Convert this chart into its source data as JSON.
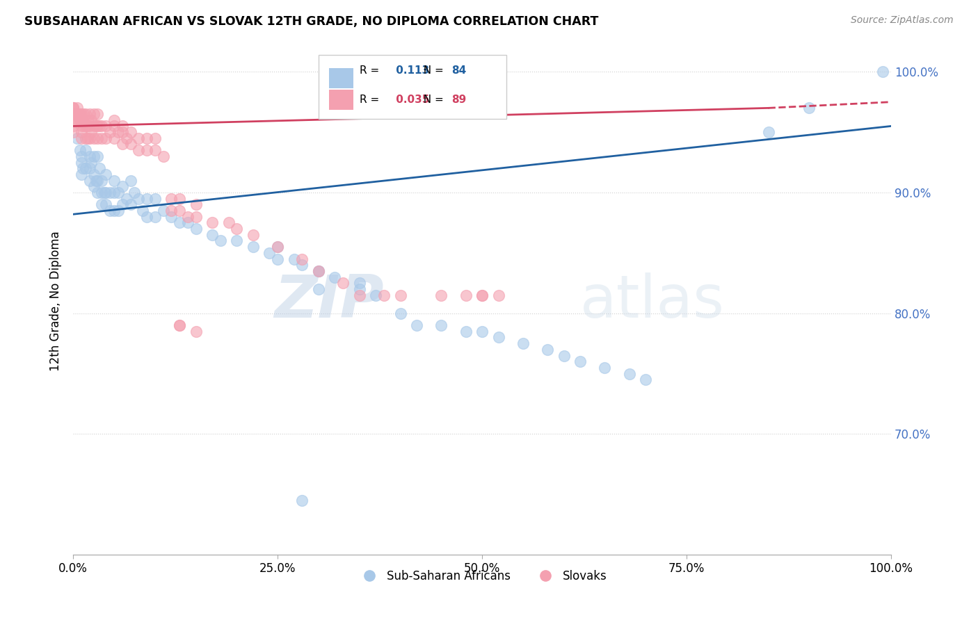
{
  "title": "SUBSAHARAN AFRICAN VS SLOVAK 12TH GRADE, NO DIPLOMA CORRELATION CHART",
  "source": "Source: ZipAtlas.com",
  "ylabel": "12th Grade, No Diploma",
  "legend_label_blue": "Sub-Saharan Africans",
  "legend_label_pink": "Slovaks",
  "R_blue": 0.113,
  "N_blue": 84,
  "R_pink": 0.035,
  "N_pink": 89,
  "color_blue": "#a8c8e8",
  "color_pink": "#f4a0b0",
  "line_color_blue": "#2060a0",
  "line_color_pink": "#d04060",
  "xlim": [
    0,
    1
  ],
  "ylim": [
    0.6,
    1.02
  ],
  "yticks": [
    0.7,
    0.8,
    0.9,
    1.0
  ],
  "xticks": [
    0.0,
    0.25,
    0.5,
    0.75,
    1.0
  ],
  "watermark_zip": "ZIP",
  "watermark_atlas": "atlas",
  "blue_x": [
    0.005,
    0.008,
    0.01,
    0.01,
    0.01,
    0.012,
    0.015,
    0.015,
    0.02,
    0.02,
    0.02,
    0.022,
    0.025,
    0.025,
    0.025,
    0.028,
    0.03,
    0.03,
    0.03,
    0.032,
    0.035,
    0.035,
    0.035,
    0.038,
    0.04,
    0.04,
    0.04,
    0.045,
    0.045,
    0.05,
    0.05,
    0.05,
    0.055,
    0.055,
    0.06,
    0.06,
    0.065,
    0.07,
    0.07,
    0.075,
    0.08,
    0.085,
    0.09,
    0.09,
    0.1,
    0.1,
    0.11,
    0.12,
    0.13,
    0.14,
    0.15,
    0.17,
    0.18,
    0.2,
    0.22,
    0.24,
    0.25,
    0.27,
    0.28,
    0.3,
    0.32,
    0.35,
    0.37,
    0.4,
    0.42,
    0.45,
    0.48,
    0.5,
    0.52,
    0.55,
    0.58,
    0.6,
    0.62,
    0.65,
    0.68,
    0.7,
    0.25,
    0.3,
    0.3,
    0.35,
    0.99,
    0.9,
    0.85,
    0.28
  ],
  "blue_y": [
    0.945,
    0.935,
    0.93,
    0.925,
    0.915,
    0.92,
    0.935,
    0.92,
    0.93,
    0.92,
    0.91,
    0.925,
    0.93,
    0.915,
    0.905,
    0.91,
    0.93,
    0.91,
    0.9,
    0.92,
    0.91,
    0.9,
    0.89,
    0.9,
    0.915,
    0.9,
    0.89,
    0.9,
    0.885,
    0.91,
    0.9,
    0.885,
    0.9,
    0.885,
    0.905,
    0.89,
    0.895,
    0.91,
    0.89,
    0.9,
    0.895,
    0.885,
    0.895,
    0.88,
    0.895,
    0.88,
    0.885,
    0.88,
    0.875,
    0.875,
    0.87,
    0.865,
    0.86,
    0.86,
    0.855,
    0.85,
    0.855,
    0.845,
    0.84,
    0.835,
    0.83,
    0.82,
    0.815,
    0.8,
    0.79,
    0.79,
    0.785,
    0.785,
    0.78,
    0.775,
    0.77,
    0.765,
    0.76,
    0.755,
    0.75,
    0.745,
    0.845,
    0.835,
    0.82,
    0.825,
    1.0,
    0.97,
    0.95,
    0.645
  ],
  "pink_x": [
    0.0,
    0.0,
    0.0,
    0.0,
    0.0,
    0.0,
    0.0,
    0.0,
    0.005,
    0.005,
    0.005,
    0.007,
    0.008,
    0.008,
    0.01,
    0.01,
    0.01,
    0.01,
    0.01,
    0.012,
    0.013,
    0.013,
    0.015,
    0.015,
    0.015,
    0.018,
    0.018,
    0.018,
    0.02,
    0.02,
    0.02,
    0.022,
    0.022,
    0.025,
    0.025,
    0.025,
    0.028,
    0.03,
    0.03,
    0.03,
    0.032,
    0.035,
    0.035,
    0.04,
    0.04,
    0.045,
    0.05,
    0.05,
    0.055,
    0.06,
    0.06,
    0.065,
    0.07,
    0.07,
    0.08,
    0.08,
    0.09,
    0.09,
    0.1,
    0.1,
    0.11,
    0.12,
    0.12,
    0.13,
    0.14,
    0.15,
    0.17,
    0.19,
    0.2,
    0.22,
    0.25,
    0.28,
    0.3,
    0.33,
    0.35,
    0.38,
    0.4,
    0.45,
    0.48,
    0.5,
    0.52,
    0.5,
    0.05,
    0.06,
    0.13,
    0.15,
    0.13,
    0.15,
    0.13
  ],
  "pink_y": [
    0.97,
    0.97,
    0.97,
    0.965,
    0.965,
    0.96,
    0.955,
    0.95,
    0.97,
    0.965,
    0.96,
    0.965,
    0.965,
    0.96,
    0.965,
    0.96,
    0.955,
    0.95,
    0.945,
    0.96,
    0.965,
    0.955,
    0.965,
    0.955,
    0.945,
    0.96,
    0.955,
    0.945,
    0.965,
    0.955,
    0.945,
    0.96,
    0.95,
    0.965,
    0.955,
    0.945,
    0.955,
    0.965,
    0.955,
    0.945,
    0.955,
    0.955,
    0.945,
    0.955,
    0.945,
    0.95,
    0.955,
    0.945,
    0.95,
    0.95,
    0.94,
    0.945,
    0.95,
    0.94,
    0.945,
    0.935,
    0.945,
    0.935,
    0.945,
    0.935,
    0.93,
    0.895,
    0.885,
    0.885,
    0.88,
    0.88,
    0.875,
    0.875,
    0.87,
    0.865,
    0.855,
    0.845,
    0.835,
    0.825,
    0.815,
    0.815,
    0.815,
    0.815,
    0.815,
    0.815,
    0.815,
    0.815,
    0.96,
    0.955,
    0.895,
    0.89,
    0.79,
    0.785,
    0.79
  ]
}
